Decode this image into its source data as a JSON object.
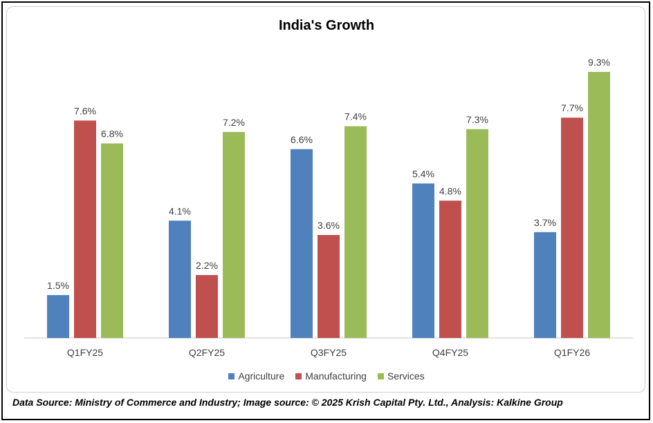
{
  "chart_data": {
    "type": "bar",
    "title": "India's Growth",
    "categories": [
      "Q1FY25",
      "Q2FY25",
      "Q3FY25",
      "Q4FY25",
      "Q1FY26"
    ],
    "series": [
      {
        "name": "Agriculture",
        "color": "#4f81bd",
        "values": [
          1.5,
          4.1,
          6.6,
          5.4,
          3.7
        ],
        "labels": [
          "1.5%",
          "4.1%",
          "6.6%",
          "5.4%",
          "3.7%"
        ]
      },
      {
        "name": "Manufacturing",
        "color": "#c0504d",
        "values": [
          7.6,
          2.2,
          3.6,
          4.8,
          7.7
        ],
        "labels": [
          "7.6%",
          "2.2%",
          "3.6%",
          "4.8%",
          "7.7%"
        ]
      },
      {
        "name": "Services",
        "color": "#9bbb59",
        "values": [
          6.8,
          7.2,
          7.4,
          7.3,
          9.3
        ],
        "labels": [
          "6.8%",
          "7.2%",
          "7.4%",
          "7.3%",
          "9.3%"
        ]
      }
    ],
    "ylim": [
      0,
      9.3
    ],
    "grid": false,
    "legend_position": "bottom",
    "axis_line_color": "#d9d9d9",
    "label_color": "#404040"
  },
  "footer": {
    "source_text": "Data Source: Ministry of Commerce and Industry; Image source: © 2025 Krish Capital Pty. Ltd., Analysis: Kalkine Group"
  }
}
